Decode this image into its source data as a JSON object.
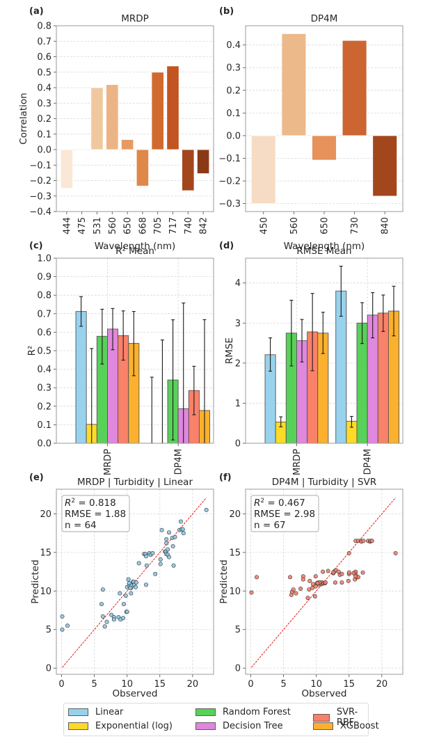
{
  "chart_data": [
    {
      "id": "a",
      "panel_label": "(a)",
      "type": "bar",
      "title": "MRDP",
      "xlabel": "Wavelength (nm)",
      "ylabel": "Correlation",
      "categories": [
        "444",
        "475",
        "531",
        "560",
        "650",
        "668",
        "705",
        "717",
        "740",
        "842"
      ],
      "values": [
        -0.25,
        0.005,
        0.4,
        0.42,
        0.065,
        -0.235,
        0.5,
        0.54,
        -0.265,
        -0.155
      ],
      "colors": [
        "#fbe7d6",
        "#f8dcc0",
        "#f0c8a0",
        "#ecb384",
        "#e69a63",
        "#e0874a",
        "#d06a2e",
        "#c25521",
        "#a3461c",
        "#8b3a18"
      ],
      "ylim": [
        -0.4,
        0.8
      ],
      "yticks": [
        "0.8",
        "0.7",
        "0.6",
        "0.5",
        "0.4",
        "0.3",
        "0.2",
        "0.1",
        "0.0",
        "−0.1",
        "−0.2",
        "−0.3",
        "−0.4"
      ],
      "ytick_values": [
        0.8,
        0.7,
        0.6,
        0.5,
        0.4,
        0.3,
        0.2,
        0.1,
        0.0,
        -0.1,
        -0.2,
        -0.3,
        -0.4
      ],
      "grid": "y-dashed"
    },
    {
      "id": "b",
      "panel_label": "(b)",
      "type": "bar",
      "title": "DP4M",
      "xlabel": "Wavelength (nm)",
      "ylabel": "",
      "categories": [
        "450",
        "560",
        "650",
        "730",
        "840"
      ],
      "values": [
        -0.3,
        0.45,
        -0.108,
        0.42,
        -0.267
      ],
      "colors": [
        "#f6dcc4",
        "#ecb98a",
        "#e6925a",
        "#cc6530",
        "#a3461c"
      ],
      "ylim": [
        -0.335,
        0.485
      ],
      "yticks": [
        "0.4",
        "0.3",
        "0.2",
        "0.1",
        "0.0",
        "−0.1",
        "−0.2",
        "−0.3"
      ],
      "ytick_values": [
        0.4,
        0.3,
        0.2,
        0.1,
        0.0,
        -0.1,
        -0.2,
        -0.3
      ],
      "grid": "y-dashed"
    },
    {
      "id": "c",
      "panel_label": "(c)",
      "type": "bar",
      "title": "R² Mean",
      "xlabel": "",
      "ylabel": "R²",
      "categories": [
        "MRDP",
        "DP4M"
      ],
      "series": [
        {
          "name": "Linear",
          "values": [
            0.712,
            0.0
          ],
          "err_low": [
            0.632,
            0.0
          ],
          "err_high": [
            0.792,
            0.357
          ]
        },
        {
          "name": "Exponential (log)",
          "values": [
            0.102,
            0.0
          ],
          "err_low": [
            0.0,
            0.0
          ],
          "err_high": [
            0.512,
            0.558
          ]
        },
        {
          "name": "Random Forest",
          "values": [
            0.578,
            0.342
          ],
          "err_low": [
            0.428,
            0.018
          ],
          "err_high": [
            0.724,
            0.667
          ]
        },
        {
          "name": "Decision Tree",
          "values": [
            0.617,
            0.187
          ],
          "err_low": [
            0.505,
            0.0
          ],
          "err_high": [
            0.728,
            0.758
          ]
        },
        {
          "name": "SVR-RBF",
          "values": [
            0.582,
            0.285
          ],
          "err_low": [
            0.449,
            0.154
          ],
          "err_high": [
            0.715,
            0.416
          ]
        },
        {
          "name": "XGBoost",
          "values": [
            0.54,
            0.177
          ],
          "err_low": [
            0.365,
            0.0
          ],
          "err_high": [
            0.712,
            0.668
          ]
        }
      ],
      "ylim": [
        0,
        1.0
      ],
      "yticks": [
        "0.0",
        "0.1",
        "0.2",
        "0.3",
        "0.4",
        "0.5",
        "0.6",
        "0.7",
        "0.8",
        "0.9",
        "1.0"
      ],
      "ytick_values": [
        0,
        0.1,
        0.2,
        0.3,
        0.4,
        0.5,
        0.6,
        0.7,
        0.8,
        0.9,
        1.0
      ],
      "grid": "xy-dashed"
    },
    {
      "id": "d",
      "panel_label": "(d)",
      "type": "bar",
      "title": "RMSE Mean",
      "xlabel": "",
      "ylabel": "RMSE",
      "categories": [
        "MRDP",
        "DP4M"
      ],
      "series": [
        {
          "name": "Linear",
          "values": [
            2.21,
            3.8
          ],
          "err_low": [
            1.8,
            3.17
          ],
          "err_high": [
            2.63,
            4.42
          ]
        },
        {
          "name": "Exponential (log)",
          "values": [
            0.53,
            0.55
          ],
          "err_low": [
            0.41,
            0.4
          ],
          "err_high": [
            0.66,
            0.67
          ]
        },
        {
          "name": "Random Forest",
          "values": [
            2.75,
            3.0
          ],
          "err_low": [
            1.93,
            2.49
          ],
          "err_high": [
            3.57,
            3.51
          ]
        },
        {
          "name": "Decision Tree",
          "values": [
            2.56,
            3.2
          ],
          "err_low": [
            2.03,
            2.63
          ],
          "err_high": [
            3.09,
            3.76
          ]
        },
        {
          "name": "SVR-RBF",
          "values": [
            2.78,
            3.25
          ],
          "err_low": [
            1.81,
            2.79
          ],
          "err_high": [
            3.74,
            3.7
          ]
        },
        {
          "name": "XGBoost",
          "values": [
            2.75,
            3.3
          ],
          "err_low": [
            2.24,
            2.68
          ],
          "err_high": [
            3.27,
            3.92
          ]
        }
      ],
      "ylim": [
        0,
        4.62
      ],
      "yticks": [
        "0",
        "1",
        "2",
        "3",
        "4"
      ],
      "ytick_values": [
        0,
        1,
        2,
        3,
        4
      ],
      "grid": "xy-dashed"
    },
    {
      "id": "e",
      "panel_label": "(e)",
      "type": "scatter",
      "title": "MRDP | Turbidity | Linear",
      "xlabel": "Observed",
      "ylabel": "Predicted",
      "xlim": [
        -0.8,
        23.2
      ],
      "ylim": [
        -0.8,
        23.2
      ],
      "xticks": [
        0,
        5,
        10,
        15,
        20
      ],
      "yticks": [
        0,
        5,
        10,
        15,
        20
      ],
      "reference_line": {
        "from": [
          0.1,
          0.1
        ],
        "to": [
          22.1,
          22.1
        ],
        "style": "dashed",
        "color": "#e31a1c"
      },
      "stats": {
        "r2_label": "R",
        "r2_sup": "2",
        "r2_value": " = 0.818",
        "rmse": "RMSE = 1.88",
        "n": "n = 64"
      },
      "point_color": "#8ec7e0",
      "points": [
        [
          0.1,
          6.7
        ],
        [
          0.1,
          5.0
        ],
        [
          0.9,
          5.5
        ],
        [
          6.1,
          8.3
        ],
        [
          6.3,
          10.2
        ],
        [
          6.3,
          6.7
        ],
        [
          6.6,
          5.4
        ],
        [
          6.9,
          6.0
        ],
        [
          7.6,
          6.9
        ],
        [
          8.0,
          6.6
        ],
        [
          8.0,
          6.3
        ],
        [
          8.7,
          6.6
        ],
        [
          8.9,
          9.7
        ],
        [
          9.0,
          6.3
        ],
        [
          9.4,
          6.5
        ],
        [
          9.5,
          8.3
        ],
        [
          9.8,
          9.4
        ],
        [
          9.9,
          7.3
        ],
        [
          10.0,
          7.3
        ],
        [
          10.0,
          10.5
        ],
        [
          10.2,
          11.5
        ],
        [
          10.3,
          11.0
        ],
        [
          10.4,
          10.6
        ],
        [
          10.6,
          10.4
        ],
        [
          10.6,
          9.7
        ],
        [
          10.7,
          10.7
        ],
        [
          10.9,
          11.2
        ],
        [
          11.0,
          11.2
        ],
        [
          11.1,
          10.8
        ],
        [
          11.3,
          10.5
        ],
        [
          11.4,
          11.1
        ],
        [
          11.8,
          13.6
        ],
        [
          12.6,
          14.8
        ],
        [
          12.8,
          14.8
        ],
        [
          12.9,
          14.5
        ],
        [
          12.9,
          10.8
        ],
        [
          13.0,
          13.3
        ],
        [
          13.4,
          14.9
        ],
        [
          13.6,
          14.7
        ],
        [
          13.9,
          14.9
        ],
        [
          14.3,
          12.2
        ],
        [
          15.1,
          14.1
        ],
        [
          15.1,
          13.5
        ],
        [
          15.3,
          17.9
        ],
        [
          15.8,
          15.1
        ],
        [
          15.9,
          15.1
        ],
        [
          16.0,
          16.7
        ],
        [
          16.0,
          16.2
        ],
        [
          16.0,
          14.8
        ],
        [
          16.2,
          14.7
        ],
        [
          16.2,
          15.4
        ],
        [
          16.4,
          14.4
        ],
        [
          16.4,
          17.6
        ],
        [
          16.9,
          16.9
        ],
        [
          17.0,
          15.8
        ],
        [
          17.1,
          13.3
        ],
        [
          17.3,
          17.0
        ],
        [
          18.0,
          17.9
        ],
        [
          18.2,
          19.0
        ],
        [
          18.3,
          18.0
        ],
        [
          18.5,
          18.0
        ],
        [
          18.6,
          17.5
        ],
        [
          22.1,
          20.5
        ],
        [
          10.5,
          10.4
        ]
      ]
    },
    {
      "id": "f",
      "panel_label": "(f)",
      "type": "scatter",
      "title": "DP4M | Turbidity | SVR",
      "xlabel": "Observed",
      "ylabel": "Predicted",
      "xlim": [
        -0.8,
        23.2
      ],
      "ylim": [
        -0.8,
        23.2
      ],
      "xticks": [
        0,
        5,
        10,
        15,
        20
      ],
      "yticks": [
        0,
        5,
        10,
        15,
        20
      ],
      "reference_line": {
        "from": [
          0.1,
          0.1
        ],
        "to": [
          22.1,
          22.1
        ],
        "style": "dashed",
        "color": "#e31a1c"
      },
      "stats": {
        "r2_label": "R",
        "r2_sup": "2",
        "r2_value": " = 0.467",
        "rmse": "RMSE = 2.98",
        "n": "n = 67"
      },
      "point_color": "#f2826e",
      "points": [
        [
          0.1,
          9.8
        ],
        [
          0.9,
          11.8
        ],
        [
          6.0,
          11.8
        ],
        [
          6.2,
          9.5
        ],
        [
          6.3,
          9.9
        ],
        [
          6.5,
          10.2
        ],
        [
          6.9,
          9.7
        ],
        [
          7.6,
          10.3
        ],
        [
          8.0,
          11.9
        ],
        [
          8.0,
          11.5
        ],
        [
          8.7,
          9.1
        ],
        [
          8.9,
          10.2
        ],
        [
          9.0,
          11.3
        ],
        [
          9.4,
          10.4
        ],
        [
          9.5,
          10.9
        ],
        [
          9.8,
          9.3
        ],
        [
          9.9,
          10.6
        ],
        [
          9.9,
          11.9
        ],
        [
          10.1,
          11.0
        ],
        [
          10.3,
          11.1
        ],
        [
          10.4,
          11.0
        ],
        [
          10.5,
          10.8
        ],
        [
          10.6,
          11.1
        ],
        [
          10.7,
          11.0
        ],
        [
          10.8,
          10.9
        ],
        [
          10.9,
          11.1
        ],
        [
          11.0,
          12.5
        ],
        [
          11.1,
          11.0
        ],
        [
          11.3,
          11.0
        ],
        [
          11.4,
          11.1
        ],
        [
          11.8,
          12.6
        ],
        [
          12.6,
          12.3
        ],
        [
          12.7,
          12.5
        ],
        [
          12.8,
          12.6
        ],
        [
          12.9,
          11.1
        ],
        [
          13.0,
          12.7
        ],
        [
          13.4,
          12.5
        ],
        [
          13.6,
          12.1
        ],
        [
          13.9,
          12.2
        ],
        [
          13.9,
          11.1
        ],
        [
          14.9,
          11.3
        ],
        [
          15.0,
          12.2
        ],
        [
          15.0,
          12.4
        ],
        [
          15.0,
          14.9
        ],
        [
          15.8,
          12.3
        ],
        [
          15.9,
          12.4
        ],
        [
          15.9,
          11.5
        ],
        [
          16.0,
          12.5
        ],
        [
          16.0,
          12.1
        ],
        [
          16.2,
          11.8
        ],
        [
          16.4,
          11.8
        ],
        [
          16.0,
          16.5
        ],
        [
          16.4,
          16.5
        ],
        [
          16.8,
          16.5
        ],
        [
          16.9,
          16.4
        ],
        [
          17.2,
          16.5
        ],
        [
          17.1,
          12.4
        ],
        [
          17.9,
          16.5
        ],
        [
          18.2,
          16.4
        ],
        [
          18.3,
          16.5
        ],
        [
          18.5,
          16.5
        ],
        [
          22.1,
          14.9
        ],
        [
          10.5,
          11.1
        ],
        [
          12.6,
          12.4
        ],
        [
          15.7,
          12.3
        ],
        [
          16.0,
          11.9
        ],
        [
          10.2,
          11.0
        ]
      ]
    }
  ],
  "legend": {
    "items": [
      {
        "label": "Linear",
        "color": "#92d0ec"
      },
      {
        "label": "Exponential (log)",
        "color": "#fcd81c"
      },
      {
        "label": "Random Forest",
        "color": "#4fcf4f"
      },
      {
        "label": "Decision Tree",
        "color": "#dd82db"
      },
      {
        "label": "SVR-RBF",
        "color": "#fa7a62"
      },
      {
        "label": "XGBoost",
        "color": "#fbad22"
      }
    ]
  }
}
